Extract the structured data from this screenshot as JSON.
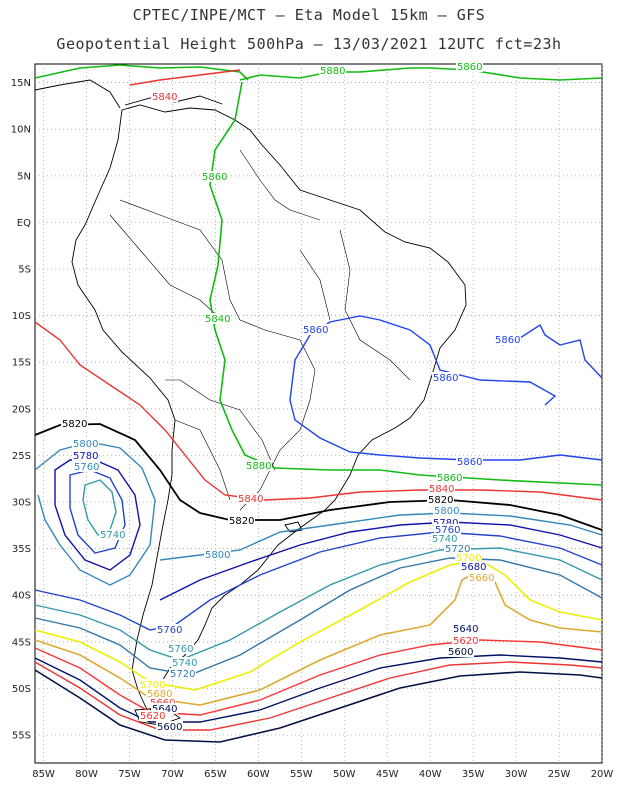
{
  "title_line1": "CPTEC/INPE/MCT –  Eta Model 15km – GFS",
  "title_line2": "Geopotential Height 500hPa – 13/03/2021 12UTC fct=23h",
  "map": {
    "lon_range": [
      -86,
      -20
    ],
    "lat_range": [
      -58,
      17
    ],
    "lat_ticks": [
      "15N",
      "10N",
      "5N",
      "EQ",
      "5S",
      "10S",
      "15S",
      "20S",
      "25S",
      "30S",
      "35S",
      "40S",
      "45S",
      "50S",
      "55S"
    ],
    "lon_ticks": [
      "85W",
      "80W",
      "75W",
      "70W",
      "65W",
      "60W",
      "55W",
      "50W",
      "45W",
      "40W",
      "35W",
      "30W",
      "25W",
      "20W"
    ],
    "grid": true,
    "colors": {
      "5880": "#11bb11",
      "5860": "#2244ee",
      "5840": "#ee3333",
      "5820": "#000000",
      "5800": "#3388bb",
      "5780": "#1111aa",
      "5760": "#2244cc",
      "5740": "#3399aa",
      "5720": "#3377aa",
      "5700": "#eeee00",
      "5680": "#ddaa33",
      "5660": "#ff3333",
      "5640": "#001166",
      "5620": "#ee3333",
      "5600": "#001144",
      "coast": "#000000"
    }
  },
  "contour_labels": [
    {
      "text": "5840",
      "color": "5840"
    },
    {
      "text": "5880",
      "color": "5880"
    },
    {
      "text": "5860",
      "color": "5880"
    },
    {
      "text": "5860",
      "color": "5880"
    },
    {
      "text": "5840",
      "color": "5880"
    },
    {
      "text": "5860",
      "color": "5860"
    },
    {
      "text": "5860",
      "color": "5860"
    },
    {
      "text": "5860",
      "color": "5860"
    },
    {
      "text": "5860",
      "color": "5860"
    },
    {
      "text": "5880",
      "color": "5880"
    },
    {
      "text": "5860",
      "color": "5880"
    },
    {
      "text": "5840",
      "color": "5840"
    },
    {
      "text": "5820",
      "color": "5820"
    },
    {
      "text": "5820",
      "color": "5820"
    },
    {
      "text": "5800",
      "color": "5800"
    },
    {
      "text": "5780",
      "color": "5780"
    },
    {
      "text": "5760",
      "color": "5800"
    },
    {
      "text": "5740",
      "color": "5740"
    },
    {
      "text": "5800",
      "color": "5800"
    },
    {
      "text": "5840",
      "color": "5840"
    },
    {
      "text": "5820",
      "color": "5820"
    },
    {
      "text": "5800",
      "color": "5800"
    },
    {
      "text": "5780",
      "color": "5780"
    },
    {
      "text": "5760",
      "color": "5760"
    },
    {
      "text": "5740",
      "color": "5740"
    },
    {
      "text": "5720",
      "color": "5720"
    },
    {
      "text": "5700",
      "color": "5700"
    },
    {
      "text": "5680",
      "color": "5780"
    },
    {
      "text": "5660",
      "color": "5680"
    },
    {
      "text": "5760",
      "color": "5760"
    },
    {
      "text": "5760",
      "color": "5740"
    },
    {
      "text": "5740",
      "color": "5740"
    },
    {
      "text": "5720",
      "color": "5720"
    },
    {
      "text": "5700",
      "color": "5700"
    },
    {
      "text": "5680",
      "color": "5680"
    },
    {
      "text": "5660",
      "color": "5660"
    },
    {
      "text": "5640",
      "color": "5640"
    },
    {
      "text": "5620",
      "color": "5620"
    },
    {
      "text": "5600",
      "color": "5600"
    },
    {
      "text": "5640",
      "color": "5640"
    },
    {
      "text": "5620",
      "color": "5620"
    },
    {
      "text": "5600",
      "color": "5600"
    }
  ]
}
